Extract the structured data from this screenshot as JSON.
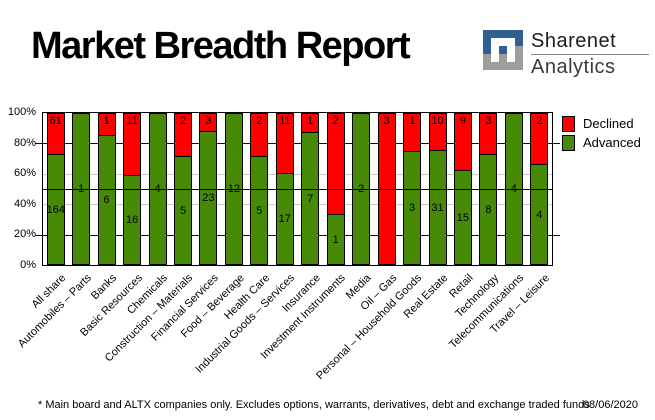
{
  "title": "Market Breadth Report",
  "logo": {
    "line1": "Sharenet",
    "line2": "Analytics",
    "blue": "#30608f",
    "gray": "#9d9d9d"
  },
  "footnote": "* Main board and ALTX companies only. Excludes options, warrants, derivatives, debt and exchange traded funds",
  "date": "08/06/2020",
  "chart_data": {
    "type": "bar",
    "stacked": true,
    "unit": "percent-of-total",
    "title": "Market Breadth Report",
    "categories": [
      "All share",
      "Automobiles – Parts",
      "Banks",
      "Basic Resources",
      "Chemicals",
      "Construction – Materials",
      "Financial Services",
      "Food – Beverage",
      "Health Care",
      "Industrial Goods – Services",
      "Insurance",
      "Investment Instruments",
      "Media",
      "Oil – Gas",
      "Personal – Household Goods",
      "Real Estate",
      "Retail",
      "Technology",
      "Telecommunications",
      "Travel – Leisure"
    ],
    "series": [
      {
        "name": "Declined",
        "color": "#ff0000",
        "values": [
          61,
          0,
          1,
          11,
          0,
          2,
          3,
          0,
          2,
          11,
          1,
          2,
          0,
          3,
          1,
          10,
          9,
          3,
          0,
          2
        ]
      },
      {
        "name": "Advanced",
        "color": "#478a08",
        "values": [
          164,
          1,
          6,
          16,
          4,
          5,
          23,
          12,
          5,
          17,
          7,
          1,
          2,
          0,
          3,
          31,
          15,
          8,
          4,
          4
        ]
      }
    ],
    "ylim": [
      0,
      100
    ],
    "y_ticks": [
      {
        "label": "100%",
        "pct": 100
      },
      {
        "label": "80%",
        "pct": 80
      },
      {
        "label": "60%",
        "pct": 60
      },
      {
        "label": "40%",
        "pct": 40
      },
      {
        "label": "20%",
        "pct": 20
      },
      {
        "label": "0%",
        "pct": 0
      }
    ],
    "gridlines": [
      {
        "pct": 80,
        "color": "#000080",
        "overhang": true
      },
      {
        "pct": 60,
        "color": "#c9c9c9"
      },
      {
        "pct": 40,
        "color": "#c9c9c9"
      },
      {
        "pct": 20,
        "color": "#000080",
        "overhang": true
      },
      {
        "pct": 50,
        "color": "#000000",
        "front": true
      }
    ],
    "legend_position": "top-right"
  }
}
